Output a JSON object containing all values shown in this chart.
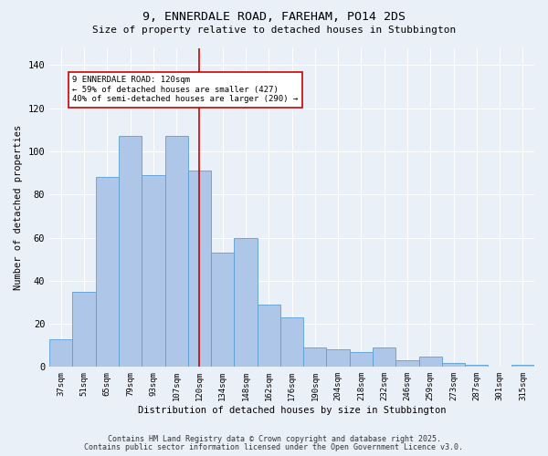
{
  "title1": "9, ENNERDALE ROAD, FAREHAM, PO14 2DS",
  "title2": "Size of property relative to detached houses in Stubbington",
  "xlabel": "Distribution of detached houses by size in Stubbington",
  "ylabel": "Number of detached properties",
  "categories": [
    "37sqm",
    "51sqm",
    "65sqm",
    "79sqm",
    "93sqm",
    "107sqm",
    "120sqm",
    "134sqm",
    "148sqm",
    "162sqm",
    "176sqm",
    "190sqm",
    "204sqm",
    "218sqm",
    "232sqm",
    "246sqm",
    "259sqm",
    "273sqm",
    "287sqm",
    "301sqm",
    "315sqm"
  ],
  "values": [
    13,
    35,
    88,
    107,
    89,
    107,
    91,
    53,
    60,
    29,
    23,
    9,
    8,
    7,
    9,
    3,
    5,
    2,
    1,
    0,
    1
  ],
  "bar_color": "#aec6e8",
  "bar_edge_color": "#5a9fd4",
  "highlight_index": 6,
  "highlight_color": "#cc0000",
  "annotation_line1": "9 ENNERDALE ROAD: 120sqm",
  "annotation_line2": "← 59% of detached houses are smaller (427)",
  "annotation_line3": "40% of semi-detached houses are larger (290) →",
  "annotation_box_color": "#ffffff",
  "annotation_box_edge": "#cc0000",
  "ylim": [
    0,
    148
  ],
  "yticks": [
    0,
    20,
    40,
    60,
    80,
    100,
    120,
    140
  ],
  "footer1": "Contains HM Land Registry data © Crown copyright and database right 2025.",
  "footer2": "Contains public sector information licensed under the Open Government Licence v3.0.",
  "bg_color": "#eaf0f8",
  "plot_bg": "#eaf0f8"
}
